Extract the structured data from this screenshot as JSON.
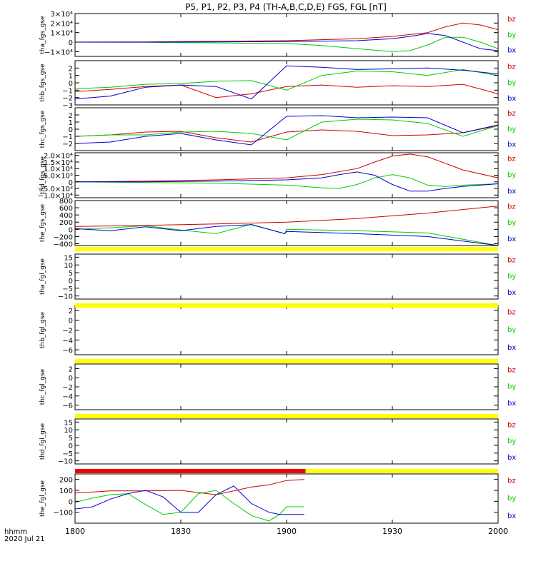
{
  "title": "P5, P1, P2, P3, P4 (TH-A,B,C,D,E) FGS, FGL [nT]",
  "footer": {
    "time_label": "hhmm",
    "date_label": "2020 Jul 21"
  },
  "x_axis": {
    "min": 1080,
    "max": 1200,
    "ticks": [
      "1800",
      "1830",
      "1900",
      "1930",
      "2000"
    ],
    "tick_values": [
      1080,
      1110,
      1140,
      1170,
      1200
    ]
  },
  "colors": {
    "bx": "#0000cc",
    "by": "#00cc00",
    "bz": "#cc0000",
    "yellow_bar": "#ffff00",
    "red_bar": "#ee0000",
    "axes": "#000000"
  },
  "chart_data": [
    {
      "type": "line",
      "ylabel": "tha_fgs_gse",
      "ylim": [
        -15000,
        30000
      ],
      "ytick_labels": [
        "3×10⁴",
        "2×10⁴",
        "1×10⁴",
        "0",
        "−1×10⁴"
      ],
      "ytick_values": [
        30000,
        20000,
        10000,
        0,
        -10000
      ],
      "legend": [
        "bz",
        "by",
        "bx"
      ],
      "series": [
        {
          "name": "bz",
          "x": [
            1080,
            1100,
            1120,
            1140,
            1160,
            1170,
            1180,
            1185,
            1190,
            1195,
            1200
          ],
          "y": [
            0,
            200,
            800,
            1500,
            3500,
            6000,
            10000,
            16000,
            20000,
            18000,
            13000
          ]
        },
        {
          "name": "by",
          "x": [
            1080,
            1100,
            1120,
            1140,
            1150,
            1160,
            1170,
            1175,
            1180,
            1185,
            1190,
            1195,
            1200
          ],
          "y": [
            0,
            -200,
            -800,
            -1500,
            -3500,
            -7000,
            -10000,
            -9000,
            -3000,
            5000,
            5000,
            0,
            -7000
          ]
        },
        {
          "name": "bx",
          "x": [
            1080,
            1100,
            1120,
            1140,
            1160,
            1170,
            1175,
            1180,
            1185,
            1190,
            1195,
            1200
          ],
          "y": [
            0,
            0,
            200,
            500,
            1500,
            3500,
            6000,
            9000,
            7000,
            0,
            -7000,
            -9000
          ]
        }
      ]
    },
    {
      "type": "line",
      "ylabel": "thb_fgs_gse",
      "ylim": [
        -3,
        3
      ],
      "ytick_labels": [
        "2",
        "1",
        "0",
        "−1",
        "−2",
        "−3"
      ],
      "ytick_values": [
        2,
        1,
        0,
        -1,
        -2,
        -3
      ],
      "legend": [
        "bz",
        "by",
        "bx"
      ],
      "series": [
        {
          "name": "bz",
          "x": [
            1080,
            1090,
            1100,
            1110,
            1120,
            1130,
            1140,
            1150,
            1160,
            1170,
            1180,
            1190,
            1200
          ],
          "y": [
            -1.2,
            -0.9,
            -0.5,
            -0.3,
            -2.0,
            -1.5,
            -0.5,
            -0.3,
            -0.6,
            -0.4,
            -0.5,
            -0.2,
            -1.5
          ]
        },
        {
          "name": "by",
          "x": [
            1080,
            1090,
            1100,
            1110,
            1120,
            1130,
            1140,
            1150,
            1160,
            1170,
            1180,
            1190,
            1200
          ],
          "y": [
            -0.8,
            -0.6,
            -0.2,
            -0.1,
            0.2,
            0.3,
            -1.0,
            1.0,
            1.6,
            1.5,
            1.0,
            1.8,
            1.0
          ]
        },
        {
          "name": "bx",
          "x": [
            1080,
            1090,
            1100,
            1110,
            1120,
            1130,
            1140,
            1150,
            1160,
            1170,
            1180,
            1190,
            1200
          ],
          "y": [
            -2.2,
            -1.8,
            -0.6,
            -0.3,
            -0.5,
            -2.2,
            2.3,
            2.1,
            1.8,
            1.9,
            2.0,
            1.7,
            1.2
          ]
        }
      ]
    },
    {
      "type": "line",
      "ylabel": "thc_fgs_gse",
      "ylim": [
        -3,
        3
      ],
      "ytick_labels": [
        "2",
        "1",
        "0",
        "−1",
        "−2"
      ],
      "ytick_values": [
        2,
        1,
        0,
        -1,
        -2
      ],
      "legend": [
        "bz",
        "by",
        "bx"
      ],
      "series": [
        {
          "name": "bz",
          "x": [
            1080,
            1090,
            1100,
            1110,
            1120,
            1130,
            1140,
            1150,
            1160,
            1170,
            1180,
            1190,
            1200
          ],
          "y": [
            -1.0,
            -0.8,
            -0.4,
            -0.3,
            -1.2,
            -1.8,
            -0.4,
            -0.1,
            -0.3,
            -0.9,
            -0.8,
            -0.5,
            0.5
          ]
        },
        {
          "name": "by",
          "x": [
            1080,
            1090,
            1100,
            1110,
            1120,
            1130,
            1140,
            1150,
            1160,
            1170,
            1180,
            1190,
            1200
          ],
          "y": [
            -1.0,
            -0.8,
            -0.8,
            -0.4,
            -0.3,
            -0.6,
            -1.5,
            1.0,
            1.4,
            1.3,
            0.8,
            -1.0,
            0.5
          ]
        },
        {
          "name": "bx",
          "x": [
            1080,
            1090,
            1100,
            1110,
            1120,
            1130,
            1140,
            1150,
            1160,
            1170,
            1180,
            1190,
            1200
          ],
          "y": [
            -2.0,
            -1.8,
            -1.0,
            -0.6,
            -1.5,
            -2.2,
            1.8,
            1.9,
            1.6,
            1.7,
            1.6,
            -0.5,
            0.6
          ]
        }
      ]
    },
    {
      "type": "line",
      "ylabel": "thd_fgs_gse",
      "ylim": [
        -12000,
        22000
      ],
      "ytick_labels": [
        "2.0×10⁴",
        "1.5×10⁴",
        "1.0×10⁴",
        "5.0×10³",
        "0",
        "−5.0×10³",
        "−1.0×10⁴"
      ],
      "ytick_values": [
        20000,
        15000,
        10000,
        5000,
        0,
        -5000,
        -10000
      ],
      "legend": [
        "bz",
        "by",
        "bx"
      ],
      "series": [
        {
          "name": "bz",
          "x": [
            1080,
            1100,
            1120,
            1140,
            1150,
            1160,
            1165,
            1170,
            1175,
            1180,
            1185,
            1190,
            1200
          ],
          "y": [
            0,
            500,
            1500,
            3000,
            5500,
            10000,
            15000,
            19500,
            21000,
            19000,
            14000,
            9000,
            3000
          ]
        },
        {
          "name": "by",
          "x": [
            1080,
            1100,
            1120,
            1140,
            1150,
            1155,
            1160,
            1165,
            1170,
            1175,
            1180,
            1185,
            1190,
            1200
          ],
          "y": [
            0,
            -500,
            -1000,
            -2500,
            -4500,
            -5000,
            -2000,
            3000,
            5500,
            3000,
            -2500,
            -3500,
            -2500,
            -1500
          ]
        },
        {
          "name": "bx",
          "x": [
            1080,
            1100,
            1120,
            1140,
            1150,
            1155,
            1160,
            1165,
            1170,
            1175,
            1180,
            1185,
            1190,
            1200
          ],
          "y": [
            0,
            0,
            500,
            1500,
            3000,
            5500,
            7500,
            5000,
            -2000,
            -7000,
            -7000,
            -5000,
            -3500,
            -1500
          ]
        }
      ]
    },
    {
      "type": "line",
      "ylabel": "the_fgs_gse",
      "ylim": [
        -450,
        800
      ],
      "ytick_labels": [
        "800",
        "600",
        "400",
        "200",
        "0",
        "−200",
        "−400"
      ],
      "ytick_values": [
        800,
        600,
        400,
        200,
        0,
        -200,
        -400
      ],
      "legend": [
        "bz",
        "by",
        "bx"
      ],
      "series": [
        {
          "name": "bz",
          "x": [
            1080,
            1100,
            1120,
            1140,
            1160,
            1180,
            1200
          ],
          "y": [
            80,
            110,
            150,
            200,
            300,
            450,
            650
          ]
        },
        {
          "name": "by",
          "x": [
            1080,
            1090,
            1100,
            1110,
            1120,
            1130,
            1139.5,
            1140,
            1160,
            1180,
            1200
          ],
          "y": [
            0,
            40,
            100,
            -20,
            -120,
            140,
            -120,
            0,
            -40,
            -100,
            -450
          ]
        },
        {
          "name": "bx",
          "x": [
            1080,
            1090,
            1100,
            1110,
            1120,
            1130,
            1139.5,
            1140,
            1160,
            1180,
            1200
          ],
          "y": [
            20,
            -40,
            70,
            -40,
            80,
            130,
            -120,
            -60,
            -120,
            -200,
            -450
          ]
        }
      ]
    },
    {
      "type": "line",
      "ylabel": "tha_fgl_gse",
      "ylim": [
        -12,
        17
      ],
      "ytick_labels": [
        "15",
        "10",
        "5",
        "0",
        "−5",
        "−10"
      ],
      "ytick_values": [
        15,
        10,
        5,
        0,
        -5,
        -10
      ],
      "legend": [
        "bz",
        "by",
        "bx"
      ],
      "series": []
    },
    {
      "type": "line",
      "ylabel": "thb_fgl_gse",
      "ylim": [
        -7,
        3
      ],
      "ytick_labels": [
        "2",
        "0",
        "−2",
        "−4",
        "−6"
      ],
      "ytick_values": [
        2,
        0,
        -2,
        -4,
        -6
      ],
      "legend": [
        "bz",
        "by",
        "bx"
      ],
      "series": []
    },
    {
      "type": "line",
      "ylabel": "thc_fgl_gse",
      "ylim": [
        -7,
        3
      ],
      "ytick_labels": [
        "2",
        "0",
        "−2",
        "−4",
        "−6"
      ],
      "ytick_values": [
        2,
        0,
        -2,
        -4,
        -6
      ],
      "legend": [
        "bz",
        "by",
        "bx"
      ],
      "series": []
    },
    {
      "type": "line",
      "ylabel": "thd_fgl_gse",
      "ylim": [
        -12,
        17
      ],
      "ytick_labels": [
        "15",
        "10",
        "5",
        "0",
        "−5",
        "−10"
      ],
      "ytick_values": [
        15,
        10,
        5,
        0,
        -5,
        -10
      ],
      "legend": [
        "bz",
        "by",
        "bx"
      ],
      "series": []
    },
    {
      "type": "line",
      "ylabel": "the_fgl_gse",
      "ylim": [
        -200,
        250
      ],
      "ytick_labels": [
        "200",
        "100",
        "0",
        "−100"
      ],
      "ytick_values": [
        200,
        100,
        0,
        -100
      ],
      "legend": [
        "bz",
        "by",
        "bx"
      ],
      "series": [
        {
          "name": "bz",
          "x": [
            1080,
            1090,
            1100,
            1110,
            1120,
            1130,
            1135,
            1140,
            1145
          ],
          "y": [
            75,
            95,
            95,
            100,
            60,
            130,
            150,
            190,
            200
          ]
        },
        {
          "name": "by",
          "x": [
            1080,
            1085,
            1090,
            1095,
            1100,
            1105,
            1110,
            1115,
            1120,
            1125,
            1130,
            1135,
            1138,
            1140,
            1145
          ],
          "y": [
            -10,
            30,
            60,
            70,
            -30,
            -120,
            -100,
            70,
            100,
            -20,
            -130,
            -180,
            -120,
            -50,
            -50
          ]
        },
        {
          "name": "bx",
          "x": [
            1080,
            1085,
            1090,
            1095,
            1100,
            1105,
            1110,
            1115,
            1120,
            1125,
            1130,
            1135,
            1138,
            1140,
            1145
          ],
          "y": [
            -70,
            -50,
            20,
            70,
            100,
            40,
            -100,
            -100,
            60,
            140,
            -20,
            -100,
            -120,
            -120,
            -120
          ]
        }
      ]
    }
  ]
}
